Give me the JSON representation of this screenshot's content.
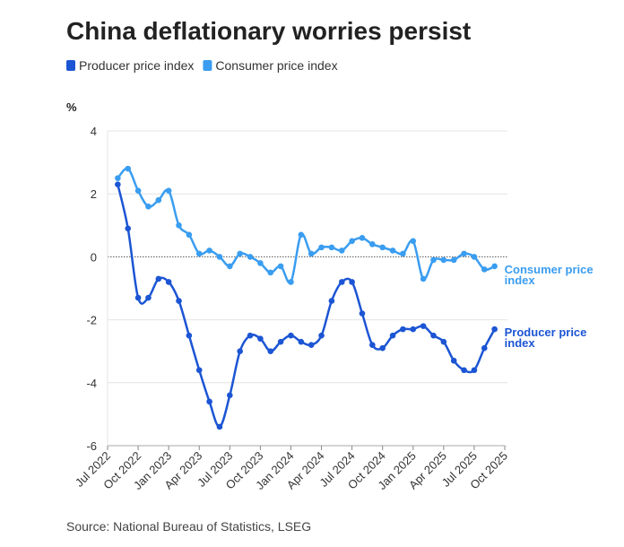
{
  "chart_data": {
    "type": "line",
    "title": "China deflationary worries persist",
    "y_label": "%",
    "source": "Source: National Bureau of Statistics, LSEG",
    "x": [
      "2022-08",
      "2022-09",
      "2022-10",
      "2022-11",
      "2022-12",
      "2023-01",
      "2023-02",
      "2023-03",
      "2023-04",
      "2023-05",
      "2023-06",
      "2023-07",
      "2023-08",
      "2023-09",
      "2023-10",
      "2023-11",
      "2023-12",
      "2024-01",
      "2024-02",
      "2024-03",
      "2024-04",
      "2024-05",
      "2024-06",
      "2024-07",
      "2024-08",
      "2024-09",
      "2024-10",
      "2024-11",
      "2024-12",
      "2025-01",
      "2025-02",
      "2025-03",
      "2025-04",
      "2025-05",
      "2025-06",
      "2025-07",
      "2025-08",
      "2025-09"
    ],
    "series": [
      {
        "name": "Producer price index",
        "color": "#1c55d4",
        "values": [
          2.3,
          0.9,
          -1.3,
          -1.3,
          -0.7,
          -0.8,
          -1.4,
          -2.5,
          -3.6,
          -4.6,
          -5.4,
          -4.4,
          -3.0,
          -2.5,
          -2.6,
          -3.0,
          -2.7,
          -2.5,
          -2.7,
          -2.8,
          -2.5,
          -1.4,
          -0.8,
          -0.8,
          -1.8,
          -2.8,
          -2.9,
          -2.5,
          -2.3,
          -2.3,
          -2.2,
          -2.5,
          -2.7,
          -3.3,
          -3.6,
          -3.6,
          -2.9,
          -2.3
        ]
      },
      {
        "name": "Consumer price index",
        "color": "#3a9df0",
        "values": [
          2.5,
          2.8,
          2.1,
          1.6,
          1.8,
          2.1,
          1.0,
          0.7,
          0.1,
          0.2,
          0.0,
          -0.3,
          0.1,
          0.0,
          -0.2,
          -0.5,
          -0.3,
          -0.8,
          0.7,
          0.1,
          0.3,
          0.3,
          0.2,
          0.5,
          0.6,
          0.4,
          0.3,
          0.2,
          0.1,
          0.5,
          -0.7,
          -0.1,
          -0.1,
          -0.1,
          0.1,
          0.0,
          -0.4,
          -0.3
        ]
      }
    ],
    "xlim": [
      "2022-07",
      "2025-10"
    ],
    "xticks": [
      {
        "value": "2022-07",
        "label": "Jul 2022"
      },
      {
        "value": "2022-10",
        "label": "Oct 2022"
      },
      {
        "value": "2023-01",
        "label": "Jan 2023"
      },
      {
        "value": "2023-04",
        "label": "Apr 2023"
      },
      {
        "value": "2023-07",
        "label": "Jul 2023"
      },
      {
        "value": "2023-10",
        "label": "Oct 2023"
      },
      {
        "value": "2024-01",
        "label": "Jan 2024"
      },
      {
        "value": "2024-04",
        "label": "Apr 2024"
      },
      {
        "value": "2024-07",
        "label": "Jul 2024"
      },
      {
        "value": "2024-10",
        "label": "Oct 2024"
      },
      {
        "value": "2025-01",
        "label": "Jan 2025"
      },
      {
        "value": "2025-04",
        "label": "Apr 2025"
      },
      {
        "value": "2025-07",
        "label": "Jul 2025"
      },
      {
        "value": "2025-10",
        "label": "Oct 2025"
      }
    ],
    "ylim": [
      -6,
      4
    ],
    "yticks": [
      -6,
      -4,
      -2,
      0,
      2,
      4
    ],
    "grid": true,
    "legend": "top-left"
  }
}
